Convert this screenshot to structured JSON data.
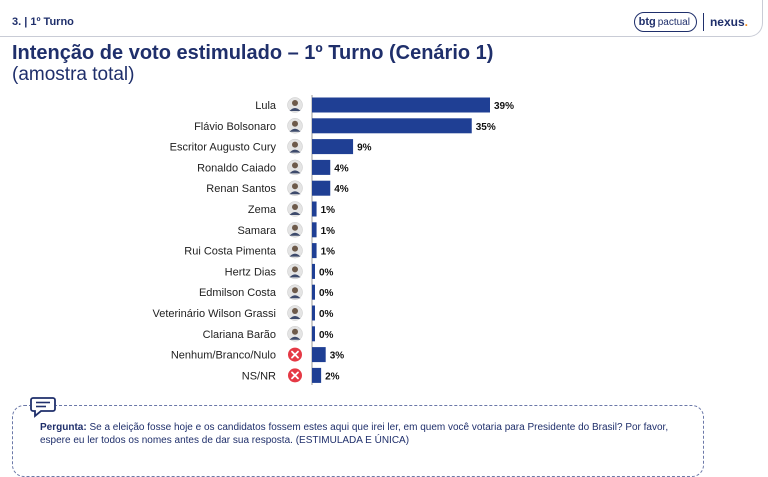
{
  "header": {
    "section": "3. | 1º Turno",
    "logo_btg_bold": "btg",
    "logo_btg_light": "pactual",
    "logo_nexus": "nexus",
    "logo_nexus_dot": "."
  },
  "page_title": "Intenção de voto estimulado – 1º Turno (Cenário 1)",
  "page_subtitle": "(amostra total)",
  "chart_data": {
    "type": "bar",
    "orientation": "horizontal",
    "categories": [
      "Lula",
      "Flávio Bolsonaro",
      "Escritor Augusto Cury",
      "Ronaldo Caiado",
      "Renan Santos",
      "Zema",
      "Samara",
      "Rui Costa Pimenta",
      "Hertz Dias",
      "Edmilson Costa",
      "Veterinário Wilson Grassi",
      "Clariana Barão",
      "Nenhum/Branco/Nulo",
      "NS/NR"
    ],
    "values": [
      39,
      35,
      9,
      4,
      4,
      1,
      1,
      1,
      0,
      0,
      0,
      0,
      3,
      2
    ],
    "value_labels": [
      "39%",
      "35%",
      "9%",
      "4%",
      "4%",
      "1%",
      "1%",
      "1%",
      "0%",
      "0%",
      "0%",
      "0%",
      "3%",
      "2%"
    ],
    "icons": [
      "avatar-icon",
      "avatar-icon",
      "avatar-icon",
      "avatar-icon",
      "avatar-icon",
      "avatar-icon",
      "avatar-icon",
      "avatar-icon",
      "avatar-icon",
      "avatar-icon",
      "avatar-icon",
      "avatar-icon",
      "x-circle-icon",
      "x-circle-icon"
    ],
    "xlim": [
      0,
      40
    ],
    "bar_color": "#1f3f94",
    "grid": false,
    "legend": "none"
  },
  "question": {
    "label": "Pergunta:",
    "text": "Se a eleição fosse hoje e os candidatos fossem estes aqui que irei ler, em quem você votaria para Presidente do Brasil? Por favor, espere eu ler todos os nomes antes de dar sua resposta. (ESTIMULADA E ÚNICA)",
    "icon": "chat-icon"
  },
  "colors": {
    "navy": "#1f2f6b",
    "bar": "#1f3f94",
    "red": "#e53945",
    "orange": "#f28c1c"
  }
}
